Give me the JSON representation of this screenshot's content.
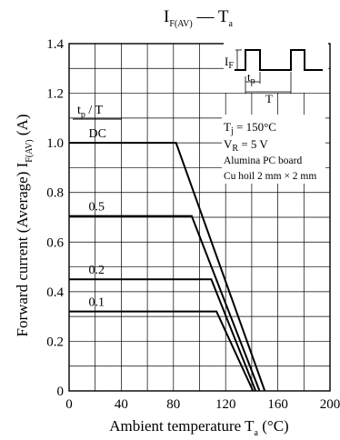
{
  "chart_data": {
    "type": "line",
    "title": {
      "main": "I",
      "main_sub": "F(AV)",
      "sep": " — ",
      "var": "T",
      "var_sub": "a"
    },
    "xlabel": {
      "text": "Ambient temperature  T",
      "sub": "a",
      "unit": "  (°C)"
    },
    "ylabel": {
      "text": "Forward current (Average)  I",
      "sub": "F(AV)",
      "unit": "  (A)"
    },
    "xlim": [
      0,
      200
    ],
    "ylim": [
      0,
      1.4
    ],
    "xticks": [
      0,
      40,
      80,
      120,
      160,
      200
    ],
    "xtick_labels": [
      "0",
      "40",
      "80",
      "120",
      "160",
      "200"
    ],
    "yticks": [
      0,
      0.2,
      0.4,
      0.6,
      0.8,
      1.0,
      1.2,
      1.4
    ],
    "ytick_labels": [
      "0",
      "0.2",
      "0.4",
      "0.6",
      "0.8",
      "1.0",
      "1.2",
      "1.4"
    ],
    "grid_x_step": 20,
    "grid_y_step": 0.1,
    "grid": true,
    "param_header": {
      "t": "t",
      "t_sub": "p",
      "rest": " / T"
    },
    "series": [
      {
        "name": "DC",
        "x": [
          0,
          82,
          150
        ],
        "y": [
          1.0,
          1.0,
          0
        ]
      },
      {
        "name": "0.5",
        "x": [
          0,
          94,
          146
        ],
        "y": [
          0.705,
          0.705,
          0
        ]
      },
      {
        "name": "0.2",
        "x": [
          0,
          109,
          143
        ],
        "y": [
          0.45,
          0.45,
          0
        ]
      },
      {
        "name": "0.1",
        "x": [
          0,
          113,
          141
        ],
        "y": [
          0.32,
          0.32,
          0
        ]
      }
    ],
    "inset": {
      "if_label": "I",
      "if_sub": "F",
      "tp_label": "t",
      "tp_sub": "p",
      "period_label": "T"
    },
    "conditions": {
      "tj_var": "T",
      "tj_sub": "j",
      "tj_val": " = 150°C",
      "vr_var": "V",
      "vr_sub": "R",
      "vr_val": " = 5 V",
      "board": "Alumina PC board",
      "foil": "Cu hoil 2 mm × 2 mm"
    }
  }
}
